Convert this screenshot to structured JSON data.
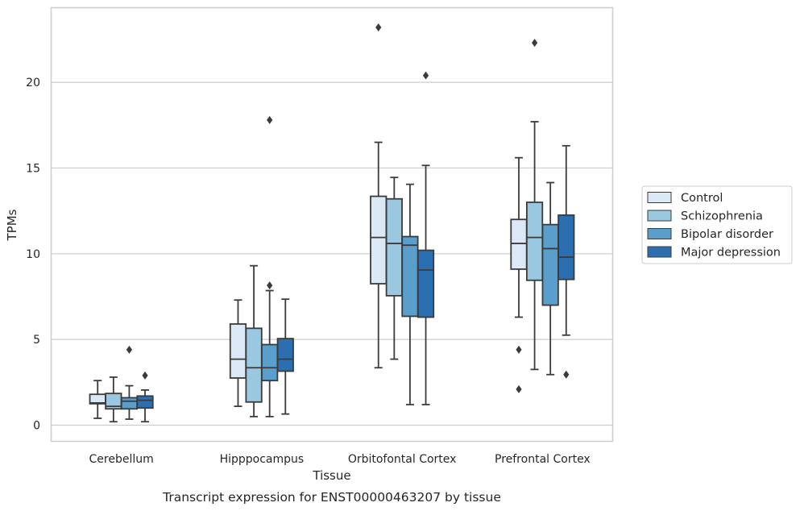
{
  "chart_data": {
    "type": "box",
    "title": "",
    "caption": "Transcript expression for ENST00000463207 by tissue",
    "xlabel": "Tissue",
    "ylabel": "TPMs",
    "ylim": [
      -1,
      24.3
    ],
    "yticks": [
      0,
      5,
      10,
      15,
      20
    ],
    "grid": "horizontal",
    "legend_position": "right",
    "categories": [
      "Cerebellum",
      "Hipppocampus",
      "Orbitofontal Cortex",
      "Prefrontal Cortex"
    ],
    "series": [
      {
        "name": "Control",
        "color": "#dbe9f6",
        "boxes": [
          {
            "whislo": 0.4,
            "q1": 1.25,
            "med": 1.3,
            "q3": 1.8,
            "whishi": 2.6,
            "fliers": []
          },
          {
            "whislo": 1.1,
            "q1": 2.75,
            "med": 3.85,
            "q3": 5.9,
            "whishi": 7.3,
            "fliers": []
          },
          {
            "whislo": 3.35,
            "q1": 8.25,
            "med": 10.95,
            "q3": 13.35,
            "whishi": 16.5,
            "fliers": [
              23.2
            ]
          },
          {
            "whislo": 6.3,
            "q1": 9.1,
            "med": 10.6,
            "q3": 12.0,
            "whishi": 15.6,
            "fliers": [
              4.4,
              2.1
            ]
          }
        ]
      },
      {
        "name": "Schizophrenia",
        "color": "#9ac8e0",
        "boxes": [
          {
            "whislo": 0.2,
            "q1": 0.95,
            "med": 1.1,
            "q3": 1.85,
            "whishi": 2.8,
            "fliers": []
          },
          {
            "whislo": 0.5,
            "q1": 1.35,
            "med": 3.35,
            "q3": 5.65,
            "whishi": 9.3,
            "fliers": []
          },
          {
            "whislo": 3.85,
            "q1": 7.55,
            "med": 10.6,
            "q3": 13.2,
            "whishi": 14.45,
            "fliers": []
          },
          {
            "whislo": 3.25,
            "q1": 8.45,
            "med": 10.95,
            "q3": 13.0,
            "whishi": 17.7,
            "fliers": [
              22.3
            ]
          }
        ]
      },
      {
        "name": "Bipolar disorder",
        "color": "#5a9fcc",
        "boxes": [
          {
            "whislo": 0.35,
            "q1": 0.95,
            "med": 1.4,
            "q3": 1.6,
            "whishi": 2.3,
            "fliers": [
              4.4
            ]
          },
          {
            "whislo": 0.5,
            "q1": 2.6,
            "med": 3.35,
            "q3": 4.7,
            "whishi": 7.85,
            "fliers": [
              8.15,
              17.8
            ]
          },
          {
            "whislo": 1.2,
            "q1": 6.35,
            "med": 10.5,
            "q3": 11.0,
            "whishi": 14.05,
            "fliers": []
          },
          {
            "whislo": 2.95,
            "q1": 7.0,
            "med": 10.3,
            "q3": 11.7,
            "whishi": 14.15,
            "fliers": []
          }
        ]
      },
      {
        "name": "Major depression",
        "color": "#2c6fb0",
        "boxes": [
          {
            "whislo": 0.2,
            "q1": 1.0,
            "med": 1.45,
            "q3": 1.7,
            "whishi": 2.05,
            "fliers": [
              2.9
            ]
          },
          {
            "whislo": 0.65,
            "q1": 3.15,
            "med": 3.85,
            "q3": 5.05,
            "whishi": 7.35,
            "fliers": []
          },
          {
            "whislo": 1.2,
            "q1": 6.3,
            "med": 9.05,
            "q3": 10.2,
            "whishi": 15.15,
            "fliers": [
              20.4
            ]
          },
          {
            "whislo": 5.25,
            "q1": 8.5,
            "med": 9.8,
            "q3": 12.25,
            "whishi": 16.3,
            "fliers": [
              2.95
            ]
          }
        ]
      }
    ]
  }
}
